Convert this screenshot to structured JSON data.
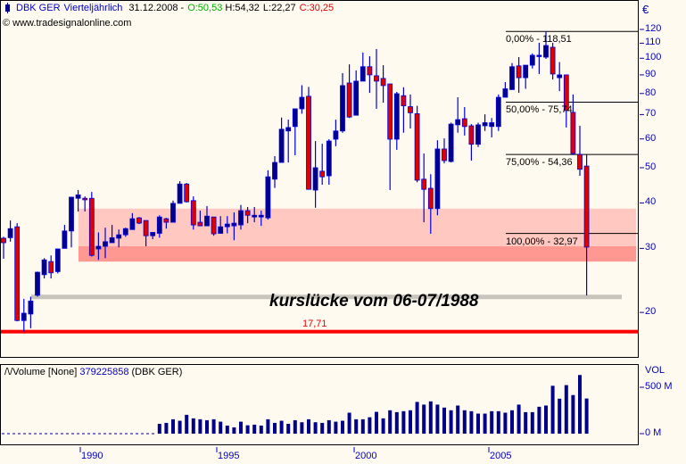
{
  "header": {
    "symbol": "DBK GER",
    "period": "Vierteljährlich",
    "date": "31.12.2008 -",
    "open": "O:50,53",
    "high": "H:54,32",
    "low": "L:22,27",
    "close": "C:30,25",
    "copyright": "© www.tradesignalonline.com"
  },
  "colors": {
    "up": "#00008b",
    "down": "#e00000",
    "wick": "#0000e0",
    "band_light": "#ffc8c0",
    "band_dark": "#ff9890",
    "gap_band": "#c8c4bc",
    "low_line": "#ff0000",
    "axis_text": "#0000c0",
    "open_text": "#00b000",
    "close_text": "#e00000",
    "background": "#fffaf0"
  },
  "annotation": {
    "text": "kurslücke vom 06-07/1988",
    "gap_level": 22.0,
    "low_label": "17,71",
    "low_value": 17.71,
    "zone_light": [
      27.6,
      38.6
    ],
    "zone_dark": [
      27.6,
      30.4
    ]
  },
  "fibonacci": [
    {
      "label": "0,00% - 118,51",
      "value": 118.51
    },
    {
      "label": "50,00% - 75,74",
      "value": 75.74
    },
    {
      "label": "75,00% - 54,36",
      "value": 54.36
    },
    {
      "label": "100,00% - 32,97",
      "value": 32.97
    }
  ],
  "chart_data": [
    {
      "type": "candlestick",
      "title": "DBK GER Vierteljährlich",
      "yscale": "log",
      "ylim": [
        17,
        125
      ],
      "yunit": "€",
      "yticks": [
        120,
        110,
        100,
        90,
        80,
        70,
        60,
        50,
        40,
        30,
        20
      ],
      "xticks": [
        "1990",
        "1995",
        "2000",
        "2005"
      ],
      "candles_ohlc": [
        [
          32.0,
          32.3,
          28.1,
          31.1
        ],
        [
          32.1,
          35.8,
          31.3,
          34.0
        ],
        [
          34.4,
          35.2,
          18.9,
          19.0
        ],
        [
          19.0,
          21.8,
          17.71,
          19.9
        ],
        [
          19.8,
          22.1,
          18.1,
          21.5
        ],
        [
          22.3,
          25.9,
          22.1,
          25.8
        ],
        [
          25.4,
          28.2,
          24.8,
          27.9
        ],
        [
          27.6,
          28.7,
          24.8,
          25.7
        ],
        [
          25.9,
          29.9,
          25.6,
          29.9
        ],
        [
          30.0,
          34.8,
          30.0,
          33.5
        ],
        [
          33.5,
          41.5,
          30.2,
          41.5
        ],
        [
          41.2,
          43.4,
          37.9,
          42.1
        ],
        [
          41.2,
          41.7,
          37.9,
          40.8
        ],
        [
          41.2,
          42.9,
          28.5,
          28.7
        ],
        [
          29.9,
          33.2,
          27.9,
          30.4
        ],
        [
          30.4,
          34.2,
          28.2,
          31.3
        ],
        [
          31.1,
          34.8,
          31.1,
          32.1
        ],
        [
          32.0,
          33.8,
          30.2,
          32.7
        ],
        [
          32.7,
          34.2,
          32.3,
          34.0
        ],
        [
          33.8,
          37.5,
          33.8,
          36.2
        ],
        [
          36.4,
          36.6,
          35.0,
          35.2
        ],
        [
          35.8,
          35.8,
          30.4,
          32.5
        ],
        [
          32.5,
          33.2,
          31.8,
          33.2
        ],
        [
          33.0,
          37.0,
          32.1,
          36.6
        ],
        [
          36.2,
          36.4,
          34.0,
          35.4
        ],
        [
          35.4,
          40.6,
          35.4,
          39.9
        ],
        [
          39.9,
          45.9,
          39.9,
          45.1
        ],
        [
          45.1,
          45.4,
          40.1,
          40.3
        ],
        [
          40.6,
          41.7,
          33.8,
          34.8
        ],
        [
          35.4,
          38.1,
          34.6,
          34.6
        ],
        [
          34.6,
          39.2,
          34.6,
          36.8
        ],
        [
          36.6,
          36.6,
          32.5,
          32.9
        ],
        [
          33.0,
          36.8,
          32.9,
          34.4
        ],
        [
          34.4,
          36.8,
          33.0,
          35.0
        ],
        [
          34.6,
          37.7,
          31.6,
          35.2
        ],
        [
          34.8,
          39.5,
          33.8,
          38.1
        ],
        [
          38.1,
          39.0,
          35.2,
          37.0
        ],
        [
          36.6,
          39.0,
          35.4,
          37.0
        ],
        [
          36.6,
          38.1,
          34.6,
          37.0
        ],
        [
          36.4,
          49.2,
          36.0,
          47.2
        ],
        [
          46.5,
          53.8,
          44.0,
          51.7
        ],
        [
          51.7,
          68.7,
          51.7,
          63.8
        ],
        [
          63.1,
          67.8,
          51.7,
          64.5
        ],
        [
          64.9,
          72.6,
          54.1,
          72.6
        ],
        [
          72.6,
          84.3,
          70.4,
          78.1
        ],
        [
          78.6,
          83.4,
          43.6,
          43.6
        ],
        [
          43.4,
          59.2,
          38.8,
          50.0
        ],
        [
          48.9,
          58.2,
          44.9,
          47.2
        ],
        [
          47.5,
          59.9,
          44.9,
          59.2
        ],
        [
          59.9,
          67.8,
          57.3,
          63.1
        ],
        [
          63.1,
          91.0,
          62.4,
          84.1
        ],
        [
          85.5,
          96.2,
          68.5,
          68.9
        ],
        [
          69.7,
          92.6,
          69.7,
          86.5
        ],
        [
          86.5,
          103.7,
          86.5,
          94.8
        ],
        [
          94.8,
          101.3,
          80.3,
          90.0
        ],
        [
          89.5,
          106.0,
          72.6,
          86.5
        ],
        [
          88.0,
          95.7,
          75.5,
          84.1
        ],
        [
          85.0,
          85.0,
          43.4,
          59.9
        ],
        [
          59.9,
          80.8,
          56.0,
          79.9
        ],
        [
          78.9,
          83.2,
          62.4,
          74.0
        ],
        [
          73.6,
          79.5,
          64.1,
          70.8
        ],
        [
          70.4,
          74.0,
          45.6,
          46.2
        ],
        [
          46.5,
          54.7,
          35.4,
          43.6
        ],
        [
          43.9,
          48.0,
          32.9,
          38.6
        ],
        [
          38.6,
          59.5,
          37.0,
          56.3
        ],
        [
          56.3,
          60.2,
          51.4,
          52.3
        ],
        [
          52.0,
          66.5,
          51.7,
          65.9
        ],
        [
          65.6,
          78.1,
          62.4,
          67.8
        ],
        [
          68.2,
          73.4,
          61.3,
          64.9
        ],
        [
          65.2,
          65.9,
          52.3,
          58.0
        ],
        [
          58.0,
          66.5,
          57.0,
          65.6
        ],
        [
          65.2,
          70.1,
          63.1,
          66.5
        ],
        [
          64.9,
          68.5,
          60.6,
          66.5
        ],
        [
          64.9,
          79.5,
          63.1,
          78.1
        ],
        [
          78.1,
          86.0,
          78.1,
          82.4
        ],
        [
          82.0,
          97.0,
          82.0,
          94.8
        ],
        [
          95.3,
          100.7,
          80.3,
          88.4
        ],
        [
          88.4,
          95.7,
          82.4,
          95.7
        ],
        [
          95.7,
          103.1,
          93.7,
          101.9
        ],
        [
          101.3,
          110.3,
          90.5,
          101.9
        ],
        [
          100.7,
          118.51,
          99.6,
          108.4
        ],
        [
          107.2,
          110.3,
          87.4,
          90.5
        ],
        [
          88.4,
          97.6,
          81.2,
          90.0
        ],
        [
          90.0,
          90.0,
          64.5,
          71.8
        ],
        [
          71.0,
          79.5,
          54.4,
          54.7
        ],
        [
          54.4,
          65.2,
          47.5,
          49.5
        ],
        [
          50.53,
          54.32,
          22.27,
          30.25
        ]
      ]
    },
    {
      "type": "bar",
      "title": "Volume [None] 379225858 (DBK GER)",
      "legend_prefix": "/\\/Volume [None]",
      "legend_value": "379225858",
      "legend_suffix": "(DBK GER)",
      "yunit": "M",
      "yticks_labels": [
        "VOL",
        "500 M",
        "0 M"
      ],
      "ylim": [
        0,
        700
      ],
      "values_millions": [
        null,
        null,
        null,
        null,
        null,
        null,
        null,
        null,
        null,
        null,
        null,
        null,
        null,
        null,
        null,
        null,
        null,
        null,
        null,
        null,
        null,
        null,
        null,
        106,
        116,
        155,
        139,
        203,
        165,
        155,
        145,
        155,
        129,
        87,
        68,
        129,
        90,
        97,
        87,
        155,
        116,
        139,
        106,
        145,
        123,
        155,
        123,
        116,
        145,
        129,
        139,
        226,
        155,
        155,
        177,
        235,
        165,
        252,
        232,
        242,
        252,
        342,
        313,
        348,
        313,
        281,
        252,
        303,
        252,
        242,
        216,
        216,
        242,
        242,
        226,
        252,
        313,
        232,
        232,
        290,
        303,
        516,
        377,
        523,
        416,
        632,
        379
      ]
    }
  ]
}
